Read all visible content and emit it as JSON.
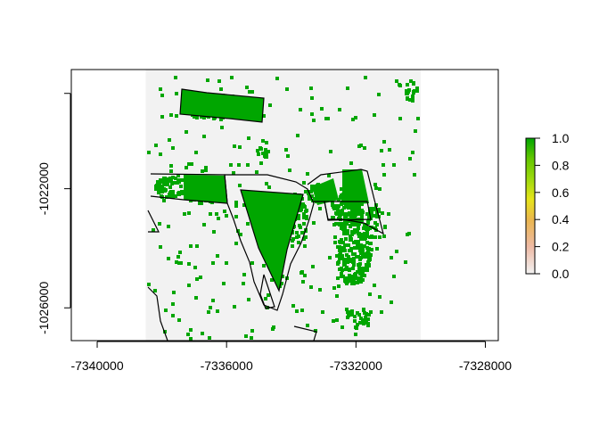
{
  "chart_data": {
    "type": "heatmap",
    "title": "",
    "xlabel": "",
    "ylabel": "",
    "x_ticks": [
      -7340000,
      -7336000,
      -7332000,
      -7328000
    ],
    "x_tick_labels": [
      "-7340000",
      "-7336000",
      "-7332000",
      "-7328000"
    ],
    "y_ticks": [
      -1022000,
      -1026000
    ],
    "y_tick_labels": [
      "-1022000",
      "-1026000"
    ],
    "xlim": [
      -7340800,
      -7327600
    ],
    "ylim": [
      -1027100,
      -1018000
    ],
    "raster_extent": {
      "x": [
        -7338500,
        -7330000
      ],
      "y": [
        -1027100,
        -1018000
      ]
    },
    "value_range": [
      0,
      1
    ],
    "colorbar": {
      "ticks": [
        0.0,
        0.2,
        0.4,
        0.6,
        0.8,
        1.0
      ],
      "tick_labels": [
        "0.0",
        "0.2",
        "0.4",
        "0.6",
        "0.8",
        "1.0"
      ],
      "colors": [
        "#F2F2F2",
        "#EEBAA5",
        "#EAB64E",
        "#E6E419",
        "#9DD90D",
        "#63C600",
        "#00A600"
      ]
    },
    "background_value": 0,
    "high_value": 1
  }
}
